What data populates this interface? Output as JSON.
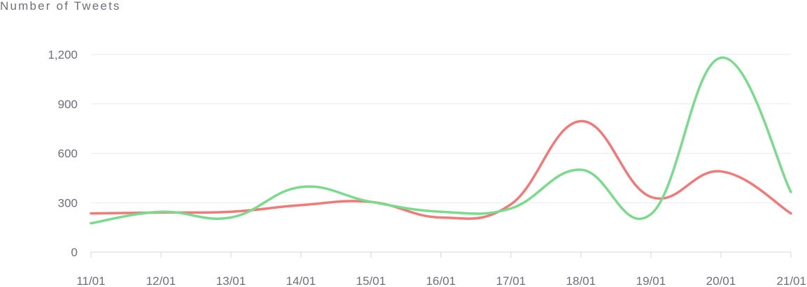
{
  "chart_data": {
    "type": "line",
    "title": "",
    "ylabel": "Number of Tweets",
    "xlabel": "",
    "categories": [
      "11/01",
      "12/01",
      "13/01",
      "14/01",
      "15/01",
      "16/01",
      "17/01",
      "18/01",
      "19/01",
      "20/01",
      "21/01"
    ],
    "y_ticks": [
      0,
      300,
      600,
      900,
      1200
    ],
    "y_tick_labels": [
      "0",
      "300",
      "600",
      "900",
      "1,200"
    ],
    "ylim": [
      0,
      1200
    ],
    "grid": true,
    "legend": "none",
    "series": [
      {
        "color": "#f07a78",
        "values": [
          235,
          240,
          245,
          285,
          305,
          210,
          290,
          795,
          335,
          490,
          235
        ]
      },
      {
        "color": "#7adb8d",
        "values": [
          175,
          245,
          210,
          395,
          305,
          245,
          265,
          500,
          230,
          1180,
          365
        ]
      }
    ]
  }
}
